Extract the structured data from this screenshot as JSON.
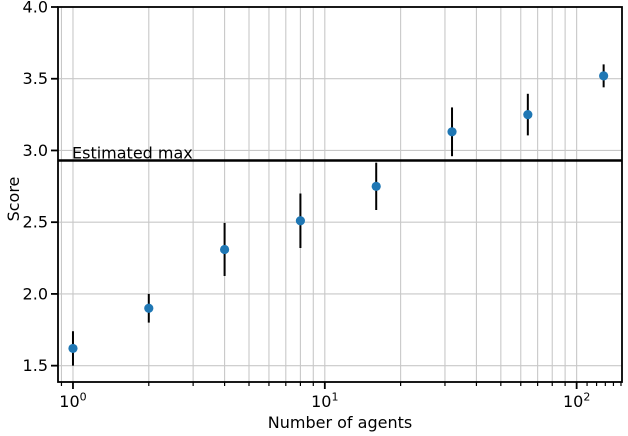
{
  "chart_data": {
    "type": "scatter",
    "xlabel": "Number of agents",
    "ylabel": "Score",
    "xscale": "log",
    "yscale": "linear",
    "xlim": [
      0.872,
      151.4
    ],
    "ylim": [
      1.386,
      4.0
    ],
    "x": [
      1,
      2,
      4,
      8,
      16,
      32,
      64,
      128
    ],
    "y": [
      1.62,
      1.9,
      2.31,
      2.51,
      2.75,
      3.13,
      3.25,
      3.52
    ],
    "yerr": [
      0.12,
      0.1,
      0.185,
      0.19,
      0.165,
      0.17,
      0.145,
      0.08
    ],
    "hline": {
      "value": 2.93,
      "label": "Estimated max",
      "color": "#000000"
    },
    "marker": {
      "shape": "circle",
      "color": "#1f77b4",
      "radius": 4.6
    },
    "errorbar_color": "#000000",
    "grid": {
      "show": true,
      "color": "#c8c8c8"
    },
    "axis_color": "#000000",
    "yticks": {
      "values": [
        1.5,
        2.0,
        2.5,
        3.0,
        3.5,
        4.0
      ],
      "labels": [
        "1.5",
        "2.0",
        "2.5",
        "3.0",
        "3.5",
        "4.0"
      ]
    },
    "xticks_major": [
      {
        "value": 1,
        "base": "10",
        "exponent": "0"
      },
      {
        "value": 10,
        "base": "10",
        "exponent": "1"
      },
      {
        "value": 100,
        "base": "10",
        "exponent": "2"
      }
    ],
    "xticks_minor": [
      0.9,
      2,
      3,
      4,
      5,
      6,
      7,
      8,
      9,
      20,
      30,
      40,
      50,
      60,
      70,
      80,
      90,
      110,
      120,
      130,
      140,
      150
    ],
    "minor_gridline_max": 100
  }
}
